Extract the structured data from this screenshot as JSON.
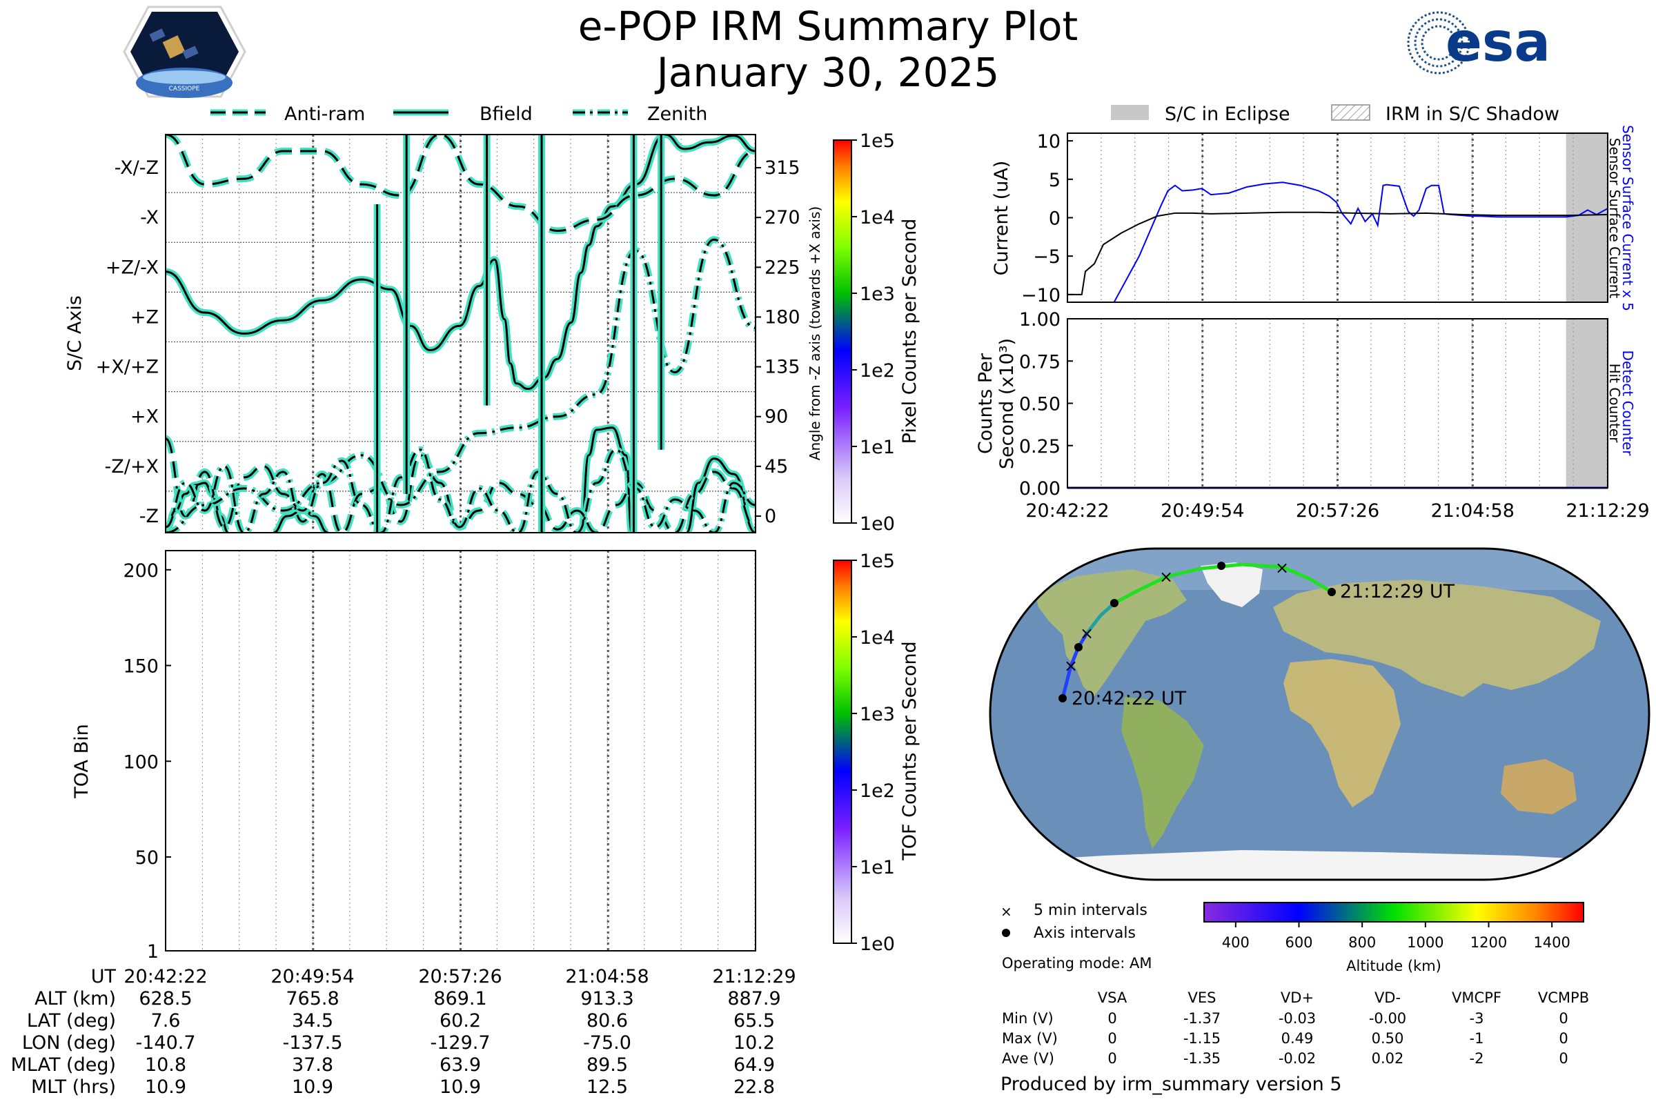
{
  "header": {
    "title": "e-POP IRM Summary Plot",
    "date": "January 30, 2025",
    "mission_logo_text": "CASSIOPE",
    "agency_logo_text": "esa"
  },
  "colors": {
    "trace_fill": "#40e0c0",
    "trace_line": "#000000",
    "eclipse": "#c8c8c8",
    "sensor_surface_x5": "#0000ff",
    "sensor_surface": "#000000",
    "detect_counter": "#0000ff",
    "land": "#a8b878",
    "ocean": "#6a8fb8",
    "ice": "#f4f4f4"
  },
  "chart_data": [
    {
      "id": "attitude",
      "type": "line",
      "legend": [
        "Anti-ram",
        "Bfield",
        "Zenith"
      ],
      "legend_placement": "top",
      "ylabel": "S/C Axis",
      "ytick_labels_left": [
        "-X/-Z",
        "-X",
        "+Z/-X",
        "+Z",
        "+X/+Z",
        "+X",
        "-Z/+X",
        "-Z"
      ],
      "ylabel_right": "Angle from -Z axis (towards +X axis)",
      "ytick_labels_right": [
        "315",
        "270",
        "225",
        "180",
        "135",
        "90",
        "45",
        "0"
      ],
      "ylim": [
        -15,
        345
      ],
      "xlim_minutes": [
        0,
        30.12
      ],
      "colorbar": {
        "label": "Pixel Counts per Second",
        "ticks": [
          "1e5",
          "1e4",
          "1e3",
          "1e2",
          "1e1",
          "1e0"
        ]
      },
      "series": [
        {
          "name": "Bfield",
          "x": [
            0,
            2,
            4,
            6,
            8,
            10,
            11.5,
            12.5,
            13.5,
            15,
            16,
            16.8,
            17.3,
            17.6,
            17.9,
            18.5,
            19.3,
            20,
            20.7,
            21.2,
            21.6,
            22,
            22.8,
            24,
            25.5,
            26.5,
            27.8,
            29,
            30.12
          ],
          "y": [
            221,
            184,
            165,
            177,
            195,
            214,
            205,
            172,
            150,
            172,
            208,
            232,
            178,
            138,
            120,
            115,
            125,
            142,
            175,
            220,
            245,
            262,
            280,
            300,
            345,
            332,
            338,
            344,
            330
          ]
        },
        {
          "name": "Bfield",
          "x": [
            0,
            0.5,
            1,
            1.5,
            2,
            2.4,
            2.8,
            3.2
          ],
          "y": [
            -15,
            5,
            20,
            28,
            30,
            20,
            0,
            -15
          ]
        },
        {
          "name": "Bfield",
          "x": [
            5.5,
            6.2,
            7,
            7.6,
            8.3
          ],
          "y": [
            -15,
            0,
            5,
            0,
            -15
          ]
        },
        {
          "name": "Bfield",
          "x": [
            21.2,
            21.6,
            22,
            22.8,
            23.5,
            23.8
          ],
          "y": [
            -15,
            55,
            78,
            80,
            55,
            -15
          ]
        },
        {
          "name": "Bfield",
          "x": [
            26.6,
            27.2,
            28,
            29,
            30.12
          ],
          "y": [
            -15,
            30,
            52,
            38,
            -15
          ]
        },
        {
          "name": "Anti-ram",
          "x": [
            0,
            2,
            4,
            6,
            8,
            10,
            12,
            14,
            16,
            18,
            20,
            22,
            24,
            26,
            28,
            30.12
          ],
          "y": [
            345,
            300,
            305,
            330,
            330,
            300,
            290,
            345,
            300,
            280,
            258,
            268,
            290,
            305,
            290,
            330
          ]
        },
        {
          "name": "Anti-ram",
          "x": [
            0,
            1,
            2,
            3,
            4,
            5,
            6,
            7,
            8,
            9,
            10,
            11,
            12,
            13,
            14,
            15,
            16,
            17,
            18,
            19,
            20,
            21,
            22,
            23,
            24,
            25,
            26,
            27,
            28,
            29,
            30.12
          ],
          "y": [
            70,
            0,
            40,
            -10,
            35,
            45,
            20,
            5,
            38,
            -15,
            20,
            25,
            -5,
            55,
            30,
            -10,
            5,
            30,
            20,
            10,
            -12,
            5,
            -15,
            10,
            30,
            5,
            -15,
            20,
            40,
            25,
            -10
          ]
        },
        {
          "name": "Zenith",
          "x": [
            0,
            2,
            4,
            6,
            8,
            10,
            12,
            14,
            16,
            18,
            20,
            22,
            24,
            26,
            28,
            30.12
          ],
          "y": [
            -15,
            10,
            25,
            5,
            30,
            55,
            10,
            40,
            75,
            80,
            90,
            110,
            240,
            130,
            250,
            170
          ]
        },
        {
          "name": "Zenith",
          "x": [
            0,
            1,
            2,
            3,
            4,
            5,
            6,
            7,
            8,
            9,
            10,
            11,
            12,
            13,
            14,
            15,
            16,
            17,
            18,
            19,
            20,
            21,
            22,
            23,
            24,
            25,
            26,
            27,
            28,
            29,
            30.12
          ],
          "y": [
            -10,
            30,
            5,
            45,
            -15,
            20,
            40,
            -5,
            30,
            50,
            10,
            -15,
            35,
            60,
            15,
            -10,
            25,
            5,
            -15,
            40,
            20,
            -15,
            30,
            60,
            25,
            -10,
            15,
            5,
            -15,
            30,
            10
          ]
        }
      ]
    },
    {
      "id": "toa",
      "type": "heatmap",
      "ylabel": "TOA Bin",
      "ytick_labels": [
        "200",
        "150",
        "100",
        "50",
        "1"
      ],
      "ylim": [
        1,
        210
      ],
      "colorbar": {
        "label": "TOF Counts per Second",
        "ticks": [
          "1e5",
          "1e4",
          "1e3",
          "1e2",
          "1e1",
          "1e0"
        ]
      },
      "values": []
    },
    {
      "id": "current",
      "type": "line",
      "legend": [
        "S/C in Eclipse",
        "IRM in S/C Shadow"
      ],
      "ylabel": "Current (uA)",
      "ylabel_right_blue": "Sensor Surface Current x 5",
      "ylabel_right_black": "Sensor Surface Current",
      "ytick_labels": [
        "10",
        "5",
        "0",
        "−5",
        "−10"
      ],
      "ylim": [
        -11,
        11
      ],
      "eclipse_minutes": [
        27.8,
        30.12
      ],
      "series": [
        {
          "name": "Sensor Surface Current x 5",
          "x": [
            2.6,
            4,
            5.2,
            5.6,
            6,
            6.4,
            7,
            7.5,
            8,
            9,
            10,
            11,
            12,
            13,
            14,
            14.6,
            15,
            15.3,
            15.8,
            16.2,
            16.6,
            17,
            17.3,
            17.6,
            17.8,
            18.5,
            19,
            19.3,
            19.6,
            20,
            20.3,
            20.7,
            21,
            21.4,
            22,
            22.5,
            23,
            24,
            25,
            26,
            27,
            27.8,
            28.5,
            29,
            29.5,
            30.12
          ],
          "y": [
            -11,
            -5,
            1.5,
            3.5,
            4.2,
            3.5,
            3.6,
            3.8,
            3,
            3.2,
            4,
            4.4,
            4.6,
            4.2,
            3.5,
            2.8,
            2,
            0.6,
            -0.8,
            1.2,
            -0.5,
            0.5,
            -1,
            4.2,
            4.3,
            4.1,
            0.8,
            0.2,
            1,
            3.8,
            4.2,
            4.2,
            0.5,
            0.4,
            0.3,
            0.2,
            0.2,
            0.1,
            0.1,
            0.1,
            0.1,
            0.1,
            0.3,
            1,
            0.4,
            1.2
          ]
        },
        {
          "name": "Sensor Surface Current",
          "x": [
            0,
            0.8,
            1,
            1.5,
            2,
            3,
            4,
            5,
            6,
            7,
            8,
            10,
            12,
            14,
            16,
            18,
            20,
            22,
            24,
            26,
            28,
            30.12
          ],
          "y": [
            -10,
            -10,
            -7,
            -6,
            -3.5,
            -2,
            -0.8,
            0.2,
            0.6,
            0.6,
            0.5,
            0.6,
            0.7,
            0.7,
            0.6,
            0.5,
            0.6,
            0.4,
            0.3,
            0.3,
            0.3,
            0.4
          ]
        }
      ]
    },
    {
      "id": "counts",
      "type": "line",
      "ylabel": "Counts Per Second (x10³)",
      "ylabel_right_blue": "Detect Counter",
      "ylabel_right_black": "Hit Counter",
      "ytick_labels": [
        "1.00",
        "0.75",
        "0.50",
        "0.25",
        "0.00"
      ],
      "ylim": [
        0,
        1
      ],
      "xtick_labels": [
        "20:42:22",
        "20:49:54",
        "20:57:26",
        "21:04:58",
        "21:12:29"
      ],
      "eclipse_minutes": [
        27.8,
        30.12
      ],
      "series": [
        {
          "name": "Detect Counter",
          "x": [
            0,
            30.12
          ],
          "y": [
            0,
            0
          ]
        }
      ]
    }
  ],
  "xaxis_table": {
    "ut": [
      "20:42:22",
      "20:49:54",
      "20:57:26",
      "21:04:58",
      "21:12:29"
    ],
    "rows": [
      {
        "label": "UT",
        "values": [
          "20:42:22",
          "20:49:54",
          "20:57:26",
          "21:04:58",
          "21:12:29"
        ]
      },
      {
        "label": "ALT (km)",
        "values": [
          "628.5",
          "765.8",
          "869.1",
          "913.3",
          "887.9"
        ]
      },
      {
        "label": "LAT (deg)",
        "values": [
          "7.6",
          "34.5",
          "60.2",
          "80.6",
          "65.5"
        ]
      },
      {
        "label": "LON (deg)",
        "values": [
          "-140.7",
          "-137.5",
          "-129.7",
          "-75.0",
          "10.2"
        ]
      },
      {
        "label": "MLAT (deg)",
        "values": [
          "10.8",
          "37.8",
          "63.9",
          "89.5",
          "64.9"
        ]
      },
      {
        "label": "MLT (hrs)",
        "values": [
          "10.9",
          "10.9",
          "10.9",
          "12.5",
          "22.8"
        ]
      }
    ]
  },
  "map": {
    "start_label": "20:42:22 UT",
    "end_label": "21:12:29 UT",
    "legend_5min": "5 min intervals",
    "legend_axis": "Axis intervals",
    "altitude_label": "Altitude (km)",
    "altitude_ticks": [
      "400",
      "600",
      "800",
      "1000",
      "1200",
      "1400"
    ],
    "operating_mode": "Operating mode: AM"
  },
  "voltage_table": {
    "headers": [
      "VSA",
      "VES",
      "VD+",
      "VD-",
      "VMCPF",
      "VCMPB"
    ],
    "rows": [
      {
        "label": "Min (V)",
        "values": [
          "0",
          "-1.37",
          "-0.03",
          "-0.00",
          "-3",
          "0"
        ]
      },
      {
        "label": "Max (V)",
        "values": [
          "0",
          "-1.15",
          "0.49",
          "0.50",
          "-1",
          "0"
        ]
      },
      {
        "label": "Ave (V)",
        "values": [
          "0",
          "-1.35",
          "-0.02",
          "0.02",
          "-2",
          "0"
        ]
      }
    ]
  },
  "footer": {
    "produced_by": "Produced by irm_summary version 5"
  }
}
